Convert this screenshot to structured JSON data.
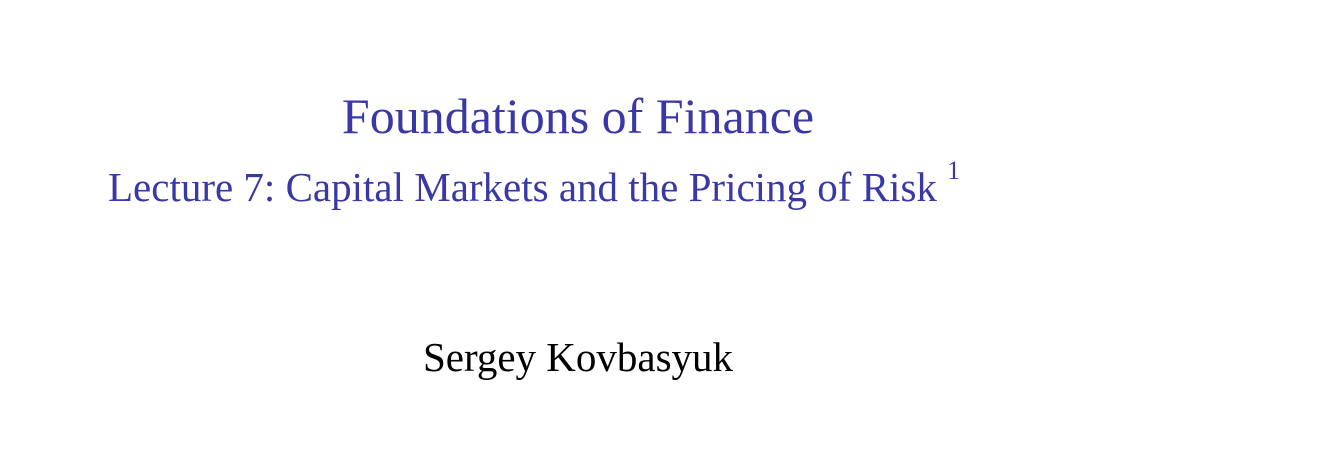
{
  "slide": {
    "title": "Foundations of Finance",
    "subtitle": "Lecture 7: Capital Markets and the Pricing of Risk",
    "footnote_marker": "1",
    "author": "Sergey Kovbasyuk"
  },
  "colors": {
    "title_color": "#3a37a6",
    "author_color": "#000000",
    "background": "#ffffff"
  }
}
